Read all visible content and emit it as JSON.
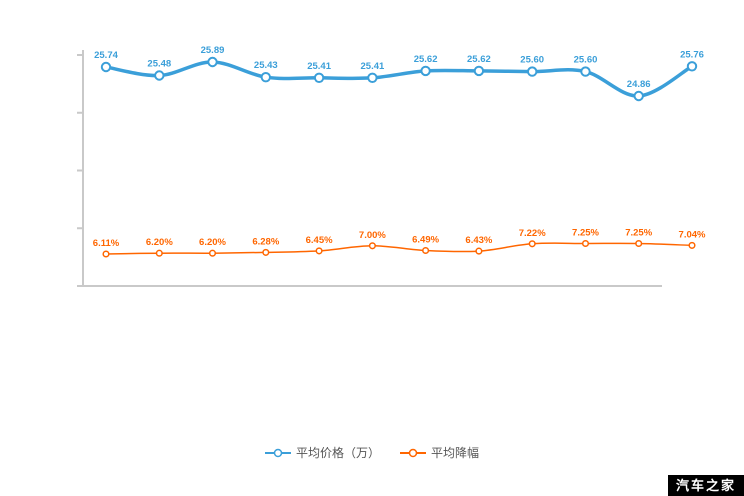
{
  "page": {
    "background": "#ffffff"
  },
  "chart_data": {
    "type": "line",
    "title": "",
    "grid": false,
    "legend_position": "bottom",
    "x_tick_labels": [],
    "series": [
      {
        "name": "平均价格（万）",
        "color": "#3b9fd9",
        "label_suffix": "",
        "values": [
          25.74,
          25.48,
          25.89,
          25.43,
          25.41,
          25.41,
          25.62,
          25.62,
          25.6,
          25.6,
          24.86,
          25.76
        ]
      },
      {
        "name": "平均降幅",
        "color": "#ff6600",
        "label_suffix": "%",
        "values": [
          6.11,
          6.2,
          6.2,
          6.28,
          6.45,
          7.0,
          6.49,
          6.43,
          7.22,
          7.25,
          7.25,
          7.04
        ]
      }
    ]
  },
  "axis": {
    "color": "#c9c9c9"
  },
  "watermark": {
    "text": "汽车之家",
    "background": "#000000",
    "color": "#ffffff"
  }
}
